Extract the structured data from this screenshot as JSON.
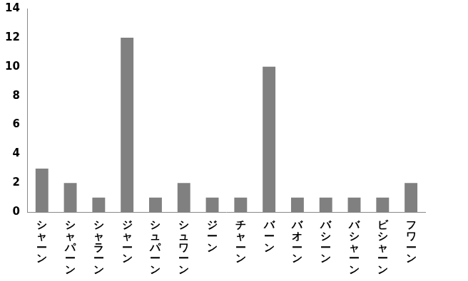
{
  "chart_data": {
    "type": "bar",
    "categories": [
      "シャーン",
      "シャパーン",
      "シャラーン",
      "ジャーン",
      "シュパーン",
      "シュワーン",
      "ジーン",
      "チャーン",
      "バーン",
      "バオーン",
      "バシーン",
      "バシャーン",
      "ビシャーン",
      "フワーン"
    ],
    "values": [
      3,
      2,
      1,
      12,
      1,
      2,
      1,
      1,
      10,
      1,
      1,
      1,
      1,
      2
    ],
    "color": "#808080",
    "ylim": [
      0,
      14
    ],
    "yticks": [
      0,
      2,
      4,
      6,
      8,
      10,
      12,
      14
    ],
    "grid": false
  }
}
